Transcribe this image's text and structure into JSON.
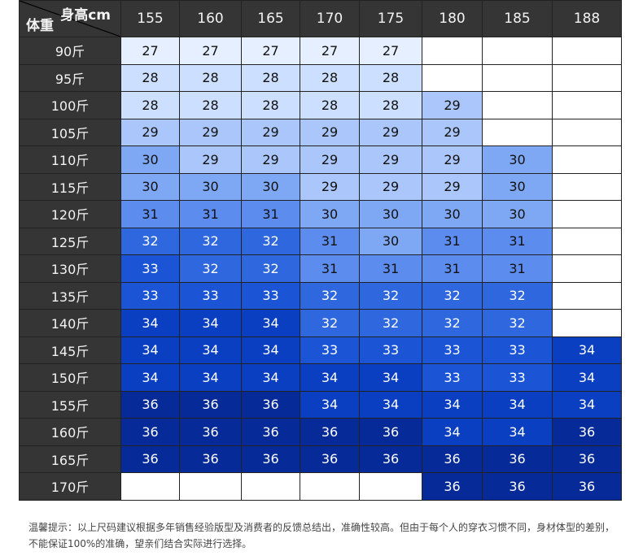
{
  "table": {
    "corner": {
      "height_label": "身高cm",
      "weight_label": "体重"
    },
    "columns": [
      "155",
      "160",
      "165",
      "170",
      "175",
      "180",
      "185",
      "188"
    ],
    "rows": [
      {
        "label": "90斤",
        "cells": [
          "27",
          "27",
          "27",
          "27",
          "27",
          "",
          "",
          ""
        ]
      },
      {
        "label": "95斤",
        "cells": [
          "28",
          "28",
          "28",
          "28",
          "28",
          "",
          "",
          ""
        ]
      },
      {
        "label": "100斤",
        "cells": [
          "28",
          "28",
          "28",
          "28",
          "28",
          "29",
          "",
          ""
        ]
      },
      {
        "label": "105斤",
        "cells": [
          "29",
          "29",
          "29",
          "29",
          "29",
          "29",
          "",
          ""
        ]
      },
      {
        "label": "110斤",
        "cells": [
          "30",
          "29",
          "29",
          "29",
          "29",
          "29",
          "30",
          ""
        ]
      },
      {
        "label": "115斤",
        "cells": [
          "30",
          "30",
          "30",
          "29",
          "29",
          "29",
          "30",
          ""
        ]
      },
      {
        "label": "120斤",
        "cells": [
          "31",
          "31",
          "31",
          "30",
          "30",
          "30",
          "30",
          ""
        ]
      },
      {
        "label": "125斤",
        "cells": [
          "32",
          "32",
          "32",
          "31",
          "30",
          "31",
          "31",
          ""
        ]
      },
      {
        "label": "130斤",
        "cells": [
          "33",
          "32",
          "32",
          "31",
          "31",
          "31",
          "31",
          ""
        ]
      },
      {
        "label": "135斤",
        "cells": [
          "33",
          "33",
          "33",
          "32",
          "32",
          "32",
          "32",
          ""
        ]
      },
      {
        "label": "140斤",
        "cells": [
          "34",
          "34",
          "34",
          "32",
          "32",
          "32",
          "32",
          ""
        ]
      },
      {
        "label": "145斤",
        "cells": [
          "34",
          "34",
          "34",
          "33",
          "33",
          "33",
          "33",
          "34"
        ]
      },
      {
        "label": "150斤",
        "cells": [
          "34",
          "34",
          "34",
          "34",
          "34",
          "33",
          "33",
          "34"
        ]
      },
      {
        "label": "155斤",
        "cells": [
          "36",
          "36",
          "36",
          "34",
          "34",
          "34",
          "34",
          "34"
        ]
      },
      {
        "label": "160斤",
        "cells": [
          "36",
          "36",
          "36",
          "36",
          "36",
          "34",
          "34",
          "36"
        ]
      },
      {
        "label": "165斤",
        "cells": [
          "36",
          "36",
          "36",
          "36",
          "36",
          "36",
          "36",
          "36"
        ]
      },
      {
        "label": "170斤",
        "cells": [
          "",
          "",
          "",
          "",
          "",
          "36",
          "36",
          "36"
        ]
      }
    ]
  },
  "colors": {
    "header_bg": "#353535",
    "27": "#e6efff",
    "28": "#cddffe",
    "29": "#aac6fa",
    "30": "#7ea8f3",
    "31": "#5b8cee",
    "32": "#2e67de",
    "33": "#1b55d6",
    "34": "#0a3fc2",
    "36": "#062a98"
  },
  "note": {
    "line1": "温馨提示：以上尺码建议根据多年销售经验版型及消费者的反馈总结出，准确性较高。但由于每个人的穿衣习惯不同，身材体型的差别，",
    "line2": "不能保证100%的准确，望亲们结合实际进行选择。"
  }
}
